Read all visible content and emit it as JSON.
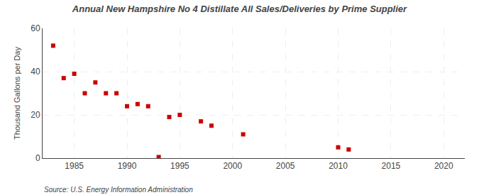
{
  "chart_data": {
    "type": "scatter",
    "title": "Annual New Hampshire No 4 Distillate All Sales/Deliveries by Prime Supplier",
    "y_label": "Thousand Gallons per Day",
    "annotations": [
      "Source: U.S. Energy Information Administration"
    ],
    "x": [
      1983,
      1984,
      1985,
      1986,
      1987,
      1988,
      1989,
      1990,
      1991,
      1992,
      1993,
      1994,
      1995,
      1997,
      1998,
      2001,
      2010,
      2011
    ],
    "values": [
      52,
      37,
      39,
      30,
      35,
      30,
      30,
      24,
      25,
      24,
      0.5,
      19,
      20,
      17,
      15,
      11,
      5,
      4
    ],
    "color": "#cc0000",
    "marker": "square",
    "xlim": [
      1982,
      2022
    ],
    "ylim": [
      0,
      60
    ],
    "xticks": [
      1985,
      1990,
      1995,
      2000,
      2005,
      2010,
      2015,
      2020
    ],
    "yticks": [
      0,
      20,
      40,
      60
    ],
    "grid": true
  }
}
